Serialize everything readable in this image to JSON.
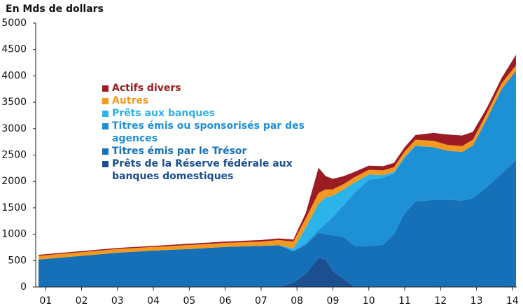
{
  "chart_data": {
    "type": "stacked_area",
    "title": "En Mds de dollars",
    "x": [
      2000.8,
      2002,
      2003,
      2004,
      2005,
      2006,
      2007,
      2007.5,
      2007.9,
      2008.25,
      2008.6,
      2008.8,
      2009.0,
      2009.3,
      2009.6,
      2010.0,
      2010.4,
      2010.7,
      2011.0,
      2011.3,
      2011.8,
      2012.2,
      2012.6,
      2012.9,
      2013.3,
      2013.7,
      2014.1
    ],
    "series": [
      {
        "name": "Prêts de la Réserve fédérale aux banques domestiques",
        "color": "#1b4f8f",
        "values": [
          0,
          0,
          0,
          0,
          0,
          0,
          0,
          0,
          80,
          250,
          550,
          520,
          300,
          150,
          0,
          0,
          0,
          0,
          0,
          0,
          0,
          0,
          0,
          0,
          0,
          0,
          0
        ]
      },
      {
        "name": "Titres émis par le Trésor",
        "color": "#1570b8",
        "values": [
          520,
          590,
          650,
          690,
          720,
          760,
          780,
          790,
          600,
          550,
          480,
          480,
          680,
          800,
          780,
          780,
          800,
          1000,
          1400,
          1620,
          1650,
          1650,
          1640,
          1680,
          1900,
          2150,
          2400
        ]
      },
      {
        "name": "Titres émis ou sponsorisés par des agences",
        "color": "#1e90d6",
        "values": [
          0,
          0,
          0,
          0,
          0,
          0,
          0,
          0,
          0,
          30,
          50,
          200,
          350,
          600,
          1000,
          1250,
          1270,
          1150,
          1050,
          1050,
          1000,
          930,
          920,
          1000,
          1300,
          1600,
          1700
        ]
      },
      {
        "name": "Prêts aux banques",
        "color": "#2bb3ea",
        "values": [
          0,
          0,
          0,
          0,
          0,
          0,
          0,
          0,
          50,
          300,
          500,
          500,
          400,
          300,
          200,
          100,
          50,
          30,
          20,
          10,
          0,
          0,
          0,
          0,
          0,
          0,
          0
        ]
      },
      {
        "name": "Autres",
        "color": "#f39a1e",
        "values": [
          70,
          70,
          70,
          70,
          75,
          75,
          80,
          100,
          130,
          180,
          200,
          150,
          120,
          100,
          100,
          90,
          90,
          90,
          100,
          110,
          120,
          110,
          110,
          110,
          110,
          110,
          100
        ]
      },
      {
        "name": "Actifs divers",
        "color": "#9c1c24",
        "values": [
          20,
          20,
          20,
          20,
          25,
          25,
          30,
          30,
          40,
          100,
          480,
          250,
          200,
          150,
          100,
          80,
          80,
          80,
          80,
          90,
          150,
          200,
          200,
          150,
          100,
          100,
          200
        ]
      }
    ],
    "xlim": [
      2000.8,
      2014.12
    ],
    "xticks": [
      {
        "value": 2001,
        "label": "01"
      },
      {
        "value": 2002,
        "label": "02"
      },
      {
        "value": 2003,
        "label": "03"
      },
      {
        "value": 2004,
        "label": "04"
      },
      {
        "value": 2005,
        "label": "05"
      },
      {
        "value": 2006,
        "label": "06"
      },
      {
        "value": 2007,
        "label": "07"
      },
      {
        "value": 2008,
        "label": "08"
      },
      {
        "value": 2009,
        "label": "09"
      },
      {
        "value": 2010,
        "label": "10"
      },
      {
        "value": 2011,
        "label": "11"
      },
      {
        "value": 2012,
        "label": "12"
      },
      {
        "value": 2013,
        "label": "13"
      },
      {
        "value": 2014,
        "label": "14"
      }
    ],
    "ylim": [
      0,
      5000
    ],
    "yticks": [
      0,
      500,
      1000,
      1500,
      2000,
      2500,
      3000,
      3500,
      4000,
      4500,
      5000
    ],
    "legend": "upper-left"
  }
}
